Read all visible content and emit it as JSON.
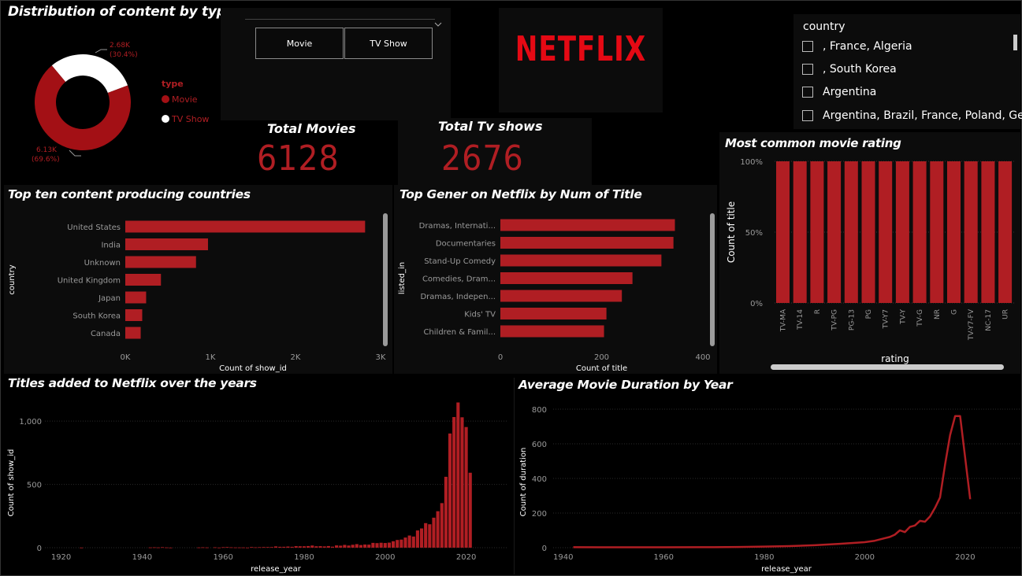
{
  "filter": {
    "buttons": [
      "Movie",
      "TV Show"
    ]
  },
  "logo": "NETFLIX",
  "kpis": {
    "movies_label": "Total Movies",
    "movies_value": "6128",
    "tv_label": "Total Tv shows",
    "tv_value": "2676"
  },
  "slicer": {
    "title": "country",
    "items": [
      ", France, Algeria",
      ", South Korea",
      "Argentina",
      "Argentina, Brazil, France, Poland, Ger..."
    ]
  },
  "colors": {
    "accent": "#b01e23",
    "movie": "#a31015",
    "tv": "#ffffff",
    "panel": "#0c0c0c"
  },
  "chart_data": [
    {
      "id": "donut",
      "type": "pie",
      "title": "Distribution of content by type",
      "legend_title": "type",
      "categories": [
        "Movie",
        "TV Show"
      ],
      "values": [
        6128,
        2676
      ],
      "labels": [
        "6.13K\n(69.6%)",
        "2.68K\n(30.4%)"
      ]
    },
    {
      "id": "countries",
      "type": "bar",
      "orientation": "horizontal",
      "title": "Top ten content producing countries",
      "xlabel": "Count of show_id",
      "ylabel": "country",
      "categories": [
        "United States",
        "India",
        "Unknown",
        "United Kingdom",
        "Japan",
        "South Korea",
        "Canada"
      ],
      "values": [
        2818,
        972,
        831,
        419,
        245,
        199,
        181
      ],
      "xlim": [
        0,
        3000
      ],
      "xticks": [
        "0K",
        "1K",
        "2K",
        "3K"
      ]
    },
    {
      "id": "genres",
      "type": "bar",
      "orientation": "horizontal",
      "title": "Top Gener on Netflix by Num of Title",
      "xlabel": "Count of title",
      "ylabel": "listed_in",
      "categories": [
        "Dramas, Internati...",
        "Documentaries",
        "Stand-Up Comedy",
        "Comedies, Dram...",
        "Dramas, Indepen...",
        "Kids' TV",
        "Children & Famil..."
      ],
      "values": [
        362,
        359,
        334,
        274,
        252,
        220,
        215
      ],
      "xlim": [
        0,
        420
      ],
      "xticks": [
        "0",
        "200",
        "400"
      ]
    },
    {
      "id": "ratings",
      "type": "bar",
      "title": "Most common movie rating",
      "xlabel": "rating",
      "ylabel": "Count of title",
      "categories": [
        "TV-MA",
        "TV-14",
        "R",
        "TV-PG",
        "PG-13",
        "PG",
        "TV-Y7",
        "TV-Y",
        "TV-G",
        "NR",
        "G",
        "TV-Y7-FV",
        "NC-17",
        "UR"
      ],
      "values": [
        100,
        100,
        100,
        100,
        100,
        100,
        100,
        100,
        100,
        100,
        100,
        100,
        100,
        100
      ],
      "ylim": [
        0,
        100
      ],
      "yticks": [
        "0%",
        "50%",
        "100%"
      ]
    },
    {
      "id": "titles_by_year",
      "type": "bar",
      "title": "Titles added to Netflix over the years",
      "xlabel": "release_year",
      "ylabel": "Count of show_id",
      "x": [
        1925,
        1942,
        1943,
        1944,
        1945,
        1946,
        1947,
        1954,
        1955,
        1956,
        1958,
        1959,
        1960,
        1961,
        1962,
        1963,
        1964,
        1965,
        1966,
        1967,
        1968,
        1969,
        1970,
        1971,
        1972,
        1973,
        1974,
        1975,
        1976,
        1977,
        1978,
        1979,
        1980,
        1981,
        1982,
        1983,
        1984,
        1985,
        1986,
        1987,
        1988,
        1989,
        1990,
        1991,
        1992,
        1993,
        1994,
        1995,
        1996,
        1997,
        1998,
        1999,
        2000,
        2001,
        2002,
        2003,
        2004,
        2005,
        2006,
        2007,
        2008,
        2009,
        2010,
        2011,
        2012,
        2013,
        2014,
        2015,
        2016,
        2017,
        2018,
        2019,
        2020,
        2021
      ],
      "values": [
        1,
        2,
        3,
        2,
        4,
        2,
        1,
        2,
        3,
        2,
        3,
        1,
        4,
        5,
        3,
        2,
        2,
        2,
        1,
        5,
        3,
        4,
        5,
        5,
        5,
        10,
        7,
        7,
        9,
        7,
        12,
        11,
        11,
        13,
        17,
        11,
        12,
        10,
        13,
        8,
        18,
        16,
        22,
        17,
        23,
        28,
        21,
        25,
        24,
        38,
        36,
        39,
        37,
        40,
        51,
        61,
        64,
        80,
        96,
        88,
        136,
        152,
        194,
        185,
        237,
        288,
        352,
        560,
        902,
        1032,
        1147,
        1030,
        953,
        592
      ],
      "xlim": [
        1916,
        2030
      ],
      "ylim": [
        0,
        1150
      ],
      "xticks": [
        "1920",
        "1940",
        "1960",
        "1980",
        "2000",
        "2020"
      ],
      "yticks": [
        "0",
        "500",
        "1,000"
      ]
    },
    {
      "id": "duration_by_year",
      "type": "line",
      "title": "Average Movie Duration by Year",
      "xlabel": "release_year",
      "ylabel": "Count of duration",
      "x": [
        1942,
        1950,
        1960,
        1970,
        1975,
        1980,
        1985,
        1990,
        1995,
        1998,
        2000,
        2002,
        2004,
        2005,
        2006,
        2007,
        2008,
        2009,
        2010,
        2011,
        2012,
        2013,
        2014,
        2015,
        2016,
        2017,
        2018,
        2019,
        2020,
        2021
      ],
      "values": [
        3,
        2,
        2,
        3,
        4,
        6,
        9,
        14,
        22,
        28,
        32,
        40,
        55,
        62,
        75,
        100,
        90,
        120,
        128,
        155,
        150,
        180,
        230,
        290,
        480,
        650,
        760,
        760,
        520,
        280
      ],
      "xlim": [
        1938,
        2031
      ],
      "ylim": [
        0,
        850
      ],
      "xticks": [
        "1940",
        "1960",
        "1980",
        "2000",
        "2020"
      ],
      "yticks": [
        "0",
        "200",
        "400",
        "600",
        "800"
      ]
    }
  ]
}
